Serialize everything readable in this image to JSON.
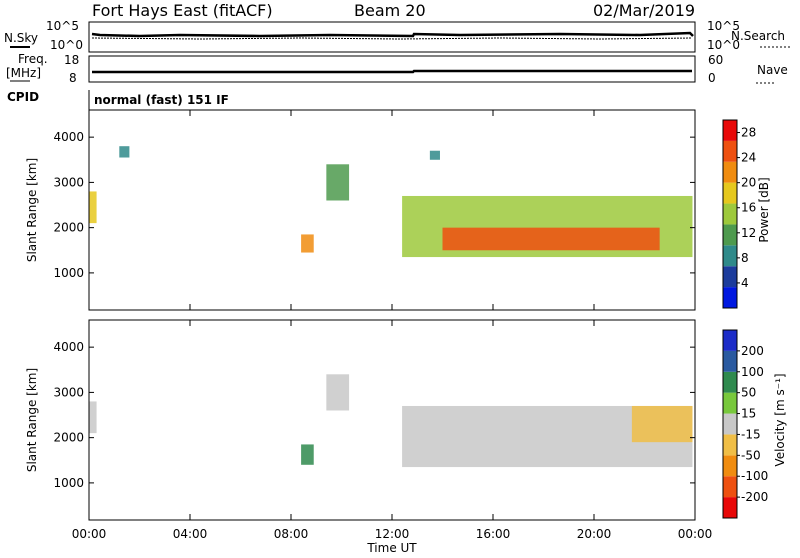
{
  "header": {
    "station": "Fort Hays East (fitACF)",
    "beam": "Beam 20",
    "date": "02/Mar/2019"
  },
  "summary_panels": {
    "nsky_label": "N.Sky",
    "nsky_ticks": [
      "10^5",
      "10^0"
    ],
    "nsearch_label": "N.Search",
    "nsearch_ticks": [
      "10^5",
      "10^0"
    ],
    "freq_label": "Freq.",
    "freq_unit": "[MHz]",
    "freq_ticks": [
      "18",
      "8"
    ],
    "nave_label": "Nave",
    "nave_ticks": [
      "60",
      "0"
    ],
    "cpid_label": "CPID",
    "cpid_value": "normal (fast) 151 IF"
  },
  "colors": {
    "power_scale": [
      "#0018e0",
      "#1c3c9c",
      "#2f8a8a",
      "#4e9a4e",
      "#9ec93c",
      "#e6c81e",
      "#f08c10",
      "#ee5010",
      "#e80808"
    ],
    "velocity_scale": [
      "#e80808",
      "#ee5010",
      "#f08c10",
      "#f0be46",
      "#c8c8c8",
      "#78c83c",
      "#2f8a4e",
      "#2a5aa0",
      "#1c2cc8"
    ],
    "ground_scatter": "#c8c8c8"
  },
  "chart_data": [
    {
      "type": "heatmap",
      "name": "power",
      "xlabel": "",
      "ylabel": "Slant Range [km]",
      "ylim": [
        180,
        4600
      ],
      "x_ticks": [
        "00:00",
        "04:00",
        "08:00",
        "12:00",
        "16:00",
        "20:00",
        "00:00"
      ],
      "y_ticks": [
        "1000",
        "2000",
        "3000",
        "4000"
      ],
      "colorbar": {
        "label": "Power [dB]",
        "ticks": [
          "4",
          "8",
          "12",
          "16",
          "20",
          "24",
          "28"
        ],
        "range": [
          0,
          30
        ]
      },
      "regions": [
        {
          "t": [
            0.0,
            0.3
          ],
          "r": [
            2100,
            2800
          ],
          "value": 18
        },
        {
          "t": [
            1.2,
            1.6
          ],
          "r": [
            3550,
            3800
          ],
          "value": 8
        },
        {
          "t": [
            8.4,
            8.9
          ],
          "r": [
            1450,
            1850
          ],
          "value": 20
        },
        {
          "t": [
            9.4,
            10.3
          ],
          "r": [
            2600,
            3400
          ],
          "value": 10
        },
        {
          "t": [
            12.4,
            23.9
          ],
          "r": [
            1350,
            2700
          ],
          "value": 16
        },
        {
          "t": [
            14.0,
            22.6
          ],
          "r": [
            1500,
            2000
          ],
          "value": 26
        },
        {
          "t": [
            13.5,
            13.9
          ],
          "r": [
            3500,
            3700
          ],
          "value": 8
        }
      ]
    },
    {
      "type": "heatmap",
      "name": "velocity",
      "xlabel": "Time UT",
      "ylabel": "Slant Range [km]",
      "ylim": [
        180,
        4600
      ],
      "x_ticks": [
        "00:00",
        "04:00",
        "08:00",
        "12:00",
        "16:00",
        "20:00",
        "00:00"
      ],
      "y_ticks": [
        "1000",
        "2000",
        "3000",
        "4000"
      ],
      "colorbar": {
        "label": "Velocity [m s⁻¹]",
        "ticks": [
          "200",
          "100",
          "50",
          "15",
          "-15",
          "-50",
          "-100",
          "-200"
        ]
      },
      "regions": [
        {
          "t": [
            0.0,
            0.3
          ],
          "r": [
            2100,
            2800
          ],
          "value": 0
        },
        {
          "t": [
            8.4,
            8.9
          ],
          "r": [
            1400,
            1850
          ],
          "value": 60
        },
        {
          "t": [
            9.4,
            10.3
          ],
          "r": [
            2600,
            3400
          ],
          "value": 0
        },
        {
          "t": [
            12.4,
            23.9
          ],
          "r": [
            1350,
            2700
          ],
          "value": 0
        },
        {
          "t": [
            21.5,
            23.9
          ],
          "r": [
            1900,
            2700
          ],
          "value": -30
        }
      ]
    }
  ]
}
